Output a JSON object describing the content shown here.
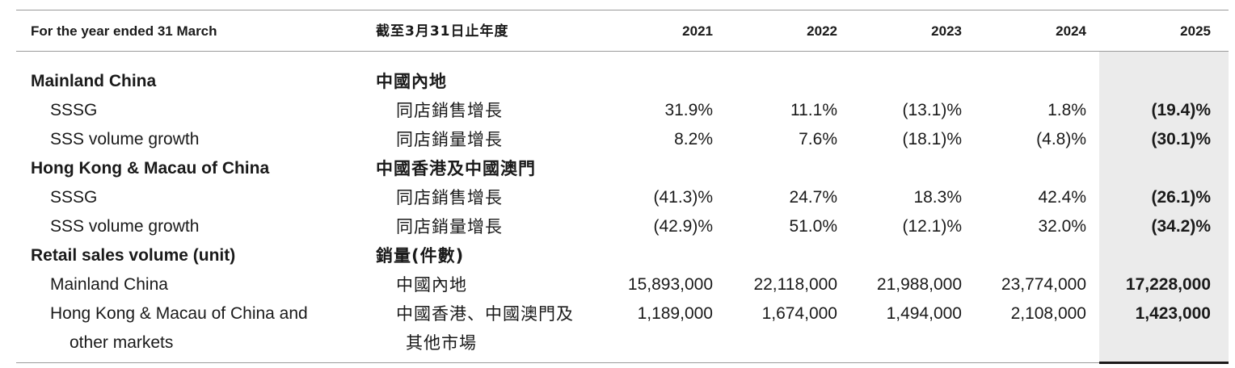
{
  "header": {
    "label_en": "For the year ended 31 March",
    "label_zh": "截至3月31日止年度",
    "years": [
      "2021",
      "2022",
      "2023",
      "2024",
      "2025"
    ]
  },
  "rows": [
    {
      "type": "section",
      "en": "Mainland China",
      "zh": "中國內地",
      "values": [
        "",
        "",
        "",
        "",
        ""
      ]
    },
    {
      "type": "item",
      "en": "SSSG",
      "zh": "同店銷售增長",
      "values": [
        "31.9%",
        "11.1%",
        "(13.1)%",
        "1.8%",
        "(19.4)%"
      ]
    },
    {
      "type": "item",
      "en": "SSS volume growth",
      "zh": "同店銷量增長",
      "values": [
        "8.2%",
        "7.6%",
        "(18.1)%",
        "(4.8)%",
        "(30.1)%"
      ]
    },
    {
      "type": "section",
      "en": "Hong Kong & Macau of China",
      "zh": "中國香港及中國澳門",
      "values": [
        "",
        "",
        "",
        "",
        ""
      ]
    },
    {
      "type": "item",
      "en": "SSSG",
      "zh": "同店銷售增長",
      "values": [
        "(41.3)%",
        "24.7%",
        "18.3%",
        "42.4%",
        "(26.1)%"
      ]
    },
    {
      "type": "item",
      "en": "SSS volume growth",
      "zh": "同店銷量增長",
      "values": [
        "(42.9)%",
        "51.0%",
        "(12.1)%",
        "32.0%",
        "(34.2)%"
      ]
    },
    {
      "type": "section",
      "en": "Retail sales volume (unit)",
      "zh": "銷量(件數)",
      "values": [
        "",
        "",
        "",
        "",
        ""
      ]
    },
    {
      "type": "item",
      "en": "Mainland China",
      "zh": "中國內地",
      "values": [
        "15,893,000",
        "22,118,000",
        "21,988,000",
        "23,774,000",
        "17,228,000"
      ]
    },
    {
      "type": "item",
      "en": "Hong Kong & Macau of China and",
      "zh": "中國香港、中國澳門及",
      "values": [
        "1,189,000",
        "1,674,000",
        "1,494,000",
        "2,108,000",
        "1,423,000"
      ]
    }
  ],
  "continuation": {
    "en": "other markets",
    "zh": "其他市場"
  },
  "colors": {
    "highlight_column": "#ebebeb",
    "rule": "#9a9a9a",
    "text": "#1a1a1a"
  }
}
